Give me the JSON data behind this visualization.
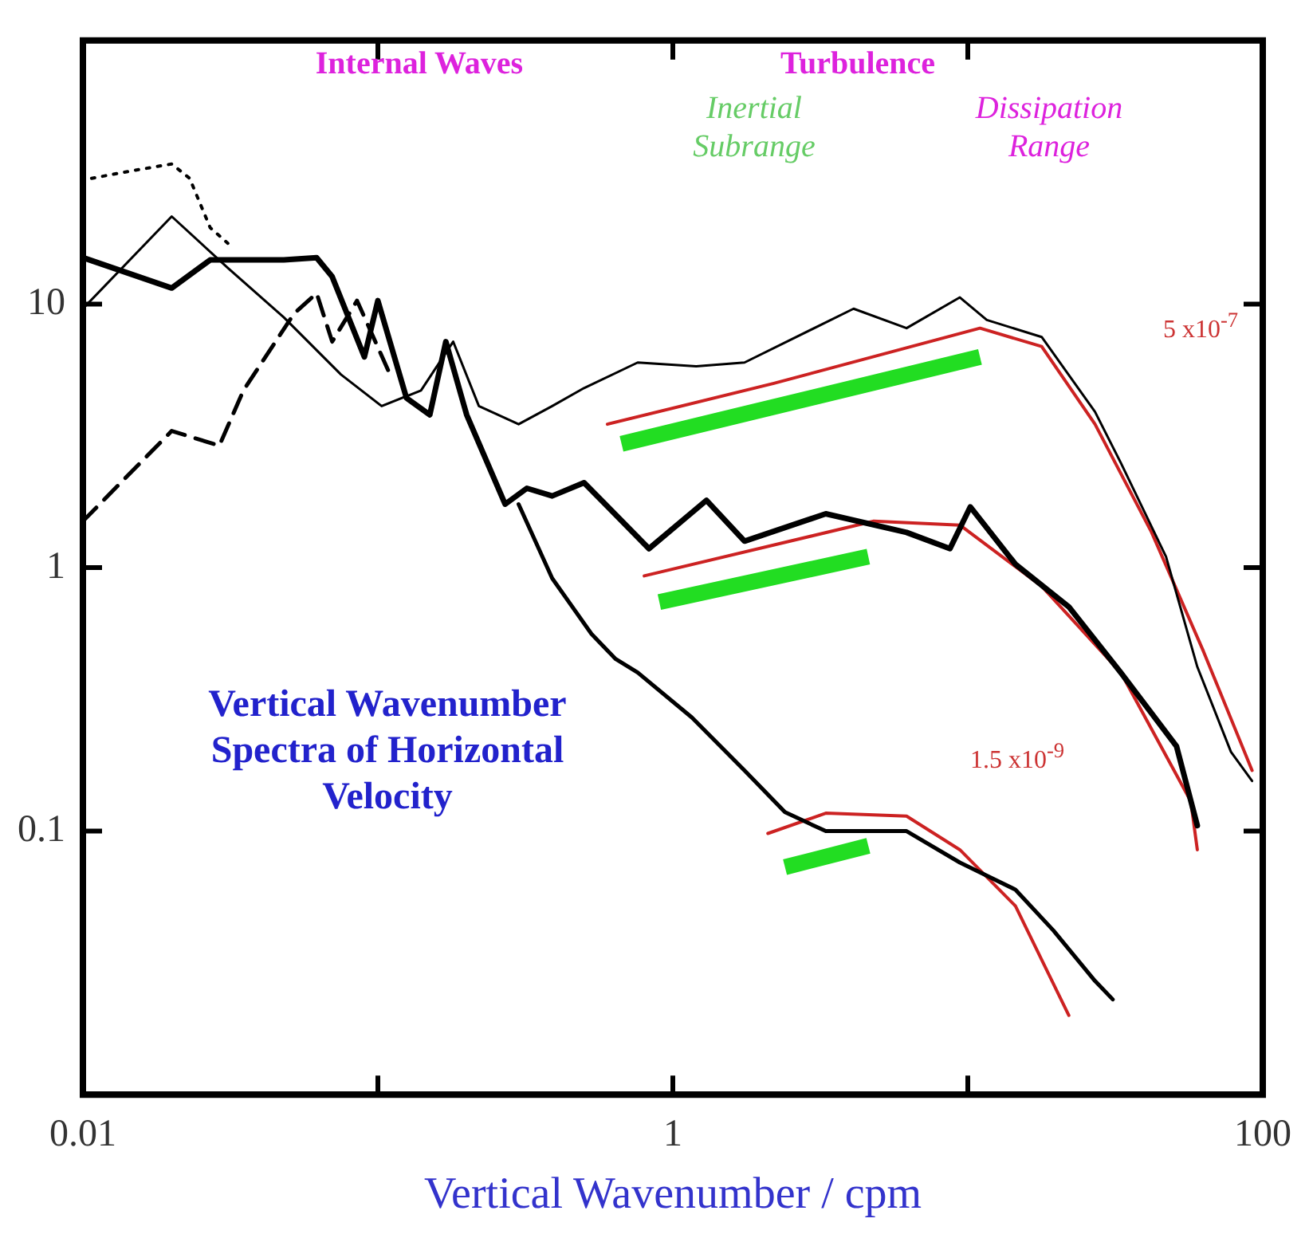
{
  "chart_data": {
    "type": "line",
    "xlabel": "Vertical Wavenumber / cpm",
    "log": "xy",
    "xlim": [
      0.01,
      100
    ],
    "ylim": [
      0.01,
      100
    ],
    "xticks": [
      0.01,
      {
        "value": 0.1,
        "label": null
      },
      1,
      {
        "value": 10,
        "label": null
      },
      100
    ],
    "yticks": [
      0.1,
      1,
      10
    ],
    "grid": false,
    "legend": false,
    "marker": "none",
    "annotations": [
      "Internal Waves",
      "Turbulence",
      "Inertial Subrange",
      "Dissipation Range",
      "5 x10$^{-7}$",
      "1.5 x10$^{-9}$",
      "Vertical Wavenumber Spectra of Horizontal Velocity"
    ],
    "series": [
      {
        "color": "#000000",
        "line_style": "solid",
        "x": [
          0.01,
          0.02,
          0.031,
          0.048,
          0.075,
          0.103,
          0.14,
          0.18,
          0.22,
          0.3,
          0.39,
          0.5,
          0.76,
          1.2,
          1.75,
          4.1,
          6.2,
          9.4,
          11.6,
          17.8,
          27,
          33,
          47,
          60,
          78,
          92
        ],
        "values": [
          9.6,
          21.5,
          13.7,
          8.9,
          5.4,
          4.1,
          4.7,
          7.2,
          4.1,
          3.5,
          4.1,
          4.8,
          6.0,
          5.8,
          6.0,
          9.6,
          8.1,
          10.6,
          8.7,
          7.5,
          3.9,
          2.5,
          1.1,
          0.42,
          0.2,
          0.155
        ]
      },
      {
        "color": "#000000",
        "line_style": "solid",
        "x": [
          0.01,
          0.02,
          0.027,
          0.048,
          0.062,
          0.07,
          0.09,
          0.1,
          0.125,
          0.15,
          0.17,
          0.2,
          0.27,
          0.32,
          0.39,
          0.5,
          0.83,
          1.3,
          1.75,
          3.3,
          6.2,
          8.7,
          10.2,
          14.5,
          22,
          33,
          51,
          60
        ],
        "values": [
          15,
          11.5,
          14.7,
          14.7,
          15,
          12.7,
          6.3,
          10.3,
          4.4,
          3.8,
          7.2,
          3.8,
          1.74,
          2.0,
          1.87,
          2.1,
          1.18,
          1.8,
          1.26,
          1.6,
          1.36,
          1.18,
          1.7,
          1.03,
          0.71,
          0.4,
          0.21,
          0.105
        ]
      },
      {
        "color": "#000000",
        "line_style": "solid",
        "x": [
          0.3,
          0.39,
          0.53,
          0.64,
          0.76,
          1.16,
          1.75,
          2.4,
          3.3,
          6.2,
          9.4,
          14.5,
          19.5,
          27,
          31
        ],
        "values": [
          1.74,
          0.91,
          0.56,
          0.45,
          0.4,
          0.27,
          0.17,
          0.118,
          0.1,
          0.1,
          0.076,
          0.06,
          0.042,
          0.027,
          0.023
        ]
      },
      {
        "color": "#000000",
        "line_style": "dashed",
        "x": [
          0.01,
          0.02,
          0.029,
          0.035,
          0.052,
          0.062,
          0.07,
          0.085,
          0.11
        ],
        "values": [
          1.5,
          3.3,
          2.9,
          4.7,
          9.2,
          11,
          7.2,
          10.3,
          5.4
        ]
      },
      {
        "color": "#000000",
        "line_style": "dotted",
        "x": [
          0.0107,
          0.0146,
          0.02,
          0.023,
          0.027,
          0.031
        ],
        "values": [
          30,
          32,
          34,
          30,
          19.5,
          17
        ]
      },
      {
        "color": "#cc2222",
        "line_style": "solid",
        "x": [
          0.6,
          2.2,
          11,
          17.8,
          27,
          42,
          63,
          92
        ],
        "values": [
          3.5,
          5.0,
          8.1,
          6.9,
          3.5,
          1.36,
          0.48,
          0.17
        ]
      },
      {
        "color": "#cc2222",
        "line_style": "solid",
        "x": [
          0.8,
          4.8,
          9.4,
          17.8,
          33,
          57,
          60
        ],
        "values": [
          0.93,
          1.5,
          1.45,
          0.85,
          0.4,
          0.13,
          0.085
        ]
      },
      {
        "color": "#cc2222",
        "line_style": "solid",
        "x": [
          2.1,
          3.3,
          6.2,
          9.4,
          14.5,
          22
        ],
        "values": [
          0.098,
          0.117,
          0.114,
          0.085,
          0.052,
          0.02
        ]
      },
      {
        "color": "#22dd22",
        "line_style": "solid",
        "x": [
          0.67,
          11
        ],
        "values": [
          2.95,
          6.3
        ]
      },
      {
        "color": "#22dd22",
        "line_style": "solid",
        "x": [
          0.9,
          4.6
        ],
        "values": [
          0.74,
          1.1
        ]
      },
      {
        "color": "#22dd22",
        "line_style": "solid",
        "x": [
          2.4,
          4.6
        ],
        "values": [
          0.073,
          0.088
        ]
      }
    ]
  }
}
